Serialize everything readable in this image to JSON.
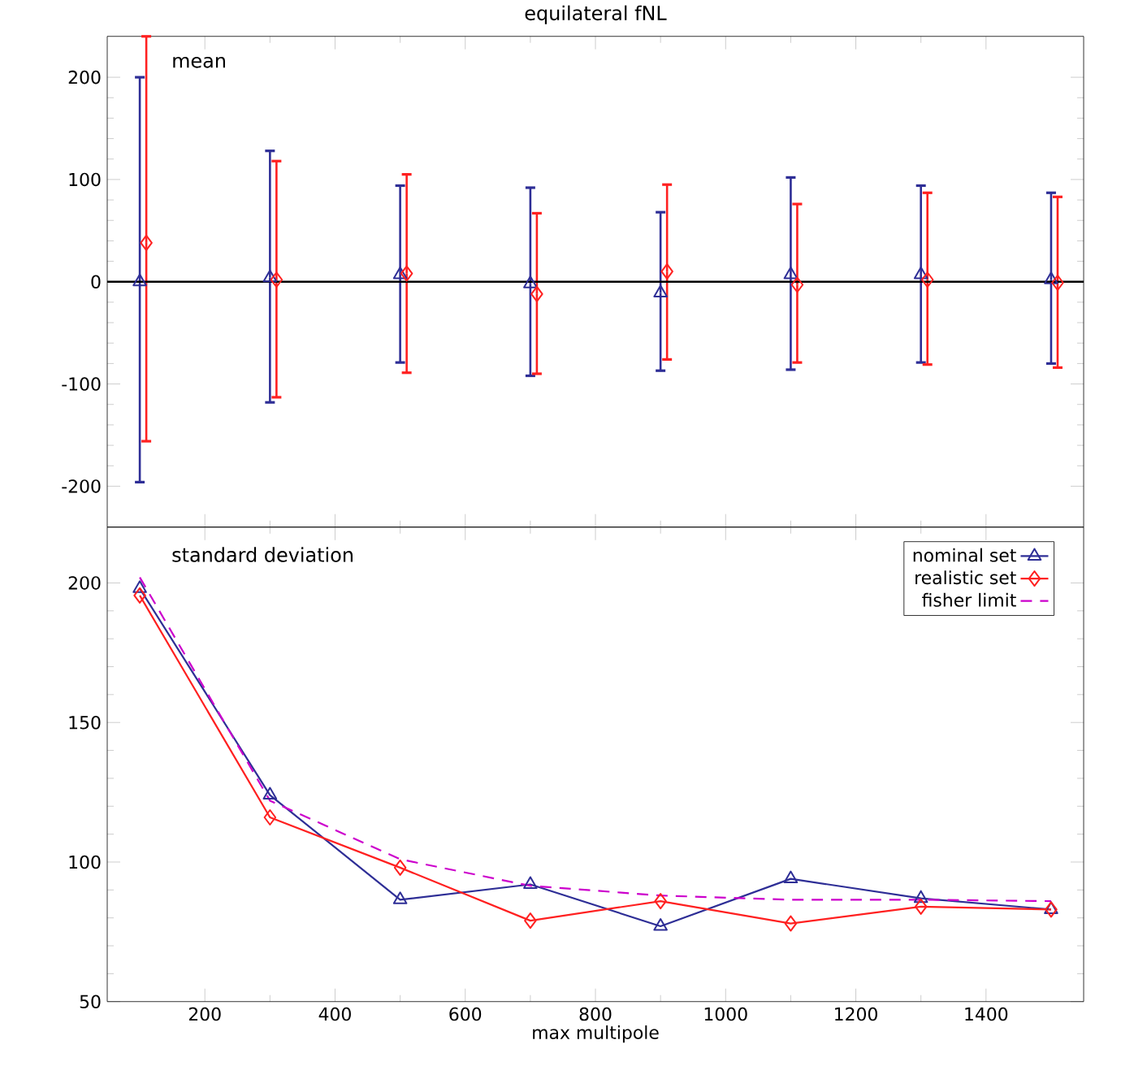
{
  "chart_data": [
    {
      "type": "scatter",
      "title": "equilateral fNL",
      "annotations": [
        "mean"
      ],
      "xlim": [
        50,
        1550
      ],
      "xticks": [
        200,
        400,
        600,
        800,
        1000,
        1200,
        1400
      ],
      "ylim": [
        -240,
        240
      ],
      "yticks": [
        -200,
        -100,
        0,
        100,
        200
      ],
      "tick_labels": "y",
      "ref_lines": [
        {
          "axis": "y",
          "value": 0,
          "color": "#000000"
        }
      ],
      "series": [
        {
          "color": "#2e2e96",
          "marker": "triangle",
          "x": [
            100,
            300,
            500,
            700,
            900,
            1100,
            1300,
            1500
          ],
          "values": [
            0,
            4,
            7,
            -2,
            -11,
            7,
            7,
            2
          ],
          "errors": [
            [
              -196,
              200
            ],
            [
              -118,
              128
            ],
            [
              -79,
              94
            ],
            [
              -92,
              92
            ],
            [
              -87,
              68
            ],
            [
              -86,
              102
            ],
            [
              -79,
              94
            ],
            [
              -80,
              87
            ]
          ]
        },
        {
          "color": "#ff2020",
          "marker": "diamond",
          "x": [
            110,
            310,
            510,
            710,
            910,
            1110,
            1310,
            1510
          ],
          "values": [
            38,
            2,
            8,
            -12,
            10,
            -3,
            2,
            -1
          ],
          "errors": [
            [
              -156,
              240
            ],
            [
              -113,
              118
            ],
            [
              -89,
              105
            ],
            [
              -90,
              67
            ],
            [
              -76,
              95
            ],
            [
              -79,
              76
            ],
            [
              -81,
              87
            ],
            [
              -84,
              83
            ]
          ]
        }
      ]
    },
    {
      "type": "line",
      "annotations": [
        "standard deviation"
      ],
      "xlabel": "max multipole",
      "xlim": [
        50,
        1550
      ],
      "xticks": [
        200,
        400,
        600,
        800,
        1000,
        1200,
        1400
      ],
      "ylim": [
        50,
        220
      ],
      "yticks": [
        50,
        100,
        150,
        200
      ],
      "legend": "top right",
      "x": [
        100,
        300,
        500,
        700,
        900,
        1100,
        1300,
        1500
      ],
      "series": [
        {
          "name": "nominal set",
          "color": "#2e2e96",
          "marker": "triangle",
          "values": [
            198,
            124,
            86.5,
            92,
            77,
            94,
            87,
            83
          ]
        },
        {
          "name": "realistic set",
          "color": "#ff2020",
          "marker": "diamond",
          "values": [
            195.5,
            116,
            98,
            79,
            86,
            78,
            84,
            83
          ]
        },
        {
          "name": "fisher limit",
          "color": "#cc00cc",
          "marker": "none",
          "line_style": "dashed",
          "values": [
            202,
            122,
            101,
            91.5,
            88,
            86.5,
            86.5,
            86
          ]
        }
      ]
    }
  ]
}
